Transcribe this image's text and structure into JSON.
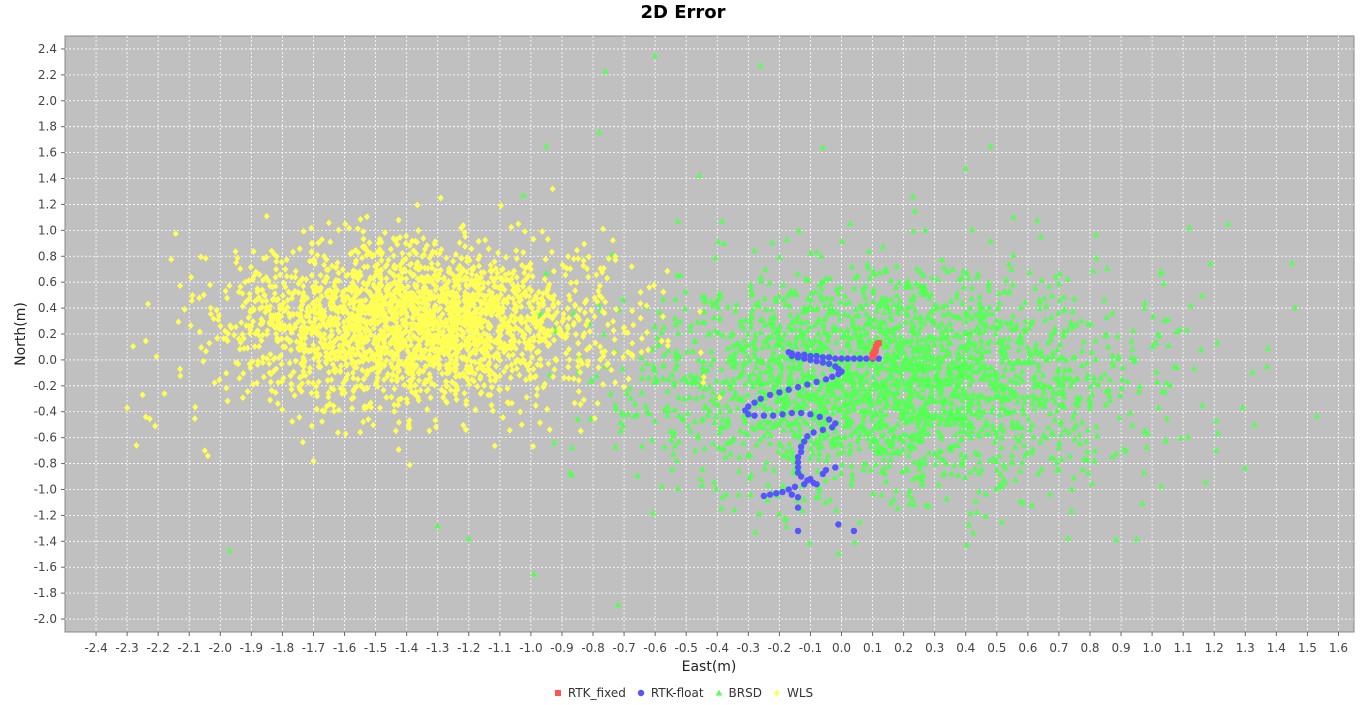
{
  "chart_data": {
    "type": "scatter",
    "title": "2D Error",
    "xlabel": "East(m)",
    "ylabel": "North(m)",
    "xlim": [
      -2.5,
      1.65
    ],
    "ylim": [
      -2.1,
      2.5
    ],
    "xticks": [
      -2.4,
      -2.3,
      -2.2,
      -2.1,
      -2.0,
      -1.9,
      -1.8,
      -1.7,
      -1.6,
      -1.5,
      -1.4,
      -1.3,
      -1.2,
      -1.1,
      -1.0,
      -0.9,
      -0.8,
      -0.7,
      -0.6,
      -0.5,
      -0.4,
      -0.3,
      -0.2,
      -0.1,
      0.0,
      0.1,
      0.2,
      0.3,
      0.4,
      0.5,
      0.6,
      0.7,
      0.8,
      0.9,
      1.0,
      1.1,
      1.2,
      1.3,
      1.4,
      1.5,
      1.6
    ],
    "yticks": [
      2.4,
      2.2,
      2.0,
      1.8,
      1.6,
      1.4,
      1.2,
      1.0,
      0.8,
      0.6,
      0.4,
      0.2,
      0.0,
      -0.2,
      -0.4,
      -0.6,
      -0.8,
      -1.0,
      -1.2,
      -1.4,
      -1.6,
      -1.8,
      -2.0
    ],
    "grid": true,
    "legend_position": "bottom",
    "colors": {
      "background": "#c0c0c0",
      "gridline": "#ffffff",
      "RTK_fixed": "#ff5555",
      "RTK-float": "#5555ff",
      "BRSD": "#55ff55",
      "WLS": "#ffff55"
    },
    "series": [
      {
        "name": "RTK_fixed",
        "marker": "square",
        "points": [
          [
            0.1,
            0.02
          ],
          [
            0.1,
            0.04
          ],
          [
            0.105,
            0.06
          ],
          [
            0.11,
            0.08
          ],
          [
            0.11,
            0.1
          ],
          [
            0.115,
            0.12
          ],
          [
            0.12,
            0.13
          ],
          [
            0.1,
            0.03
          ],
          [
            0.105,
            0.05
          ],
          [
            0.11,
            0.07
          ]
        ]
      },
      {
        "name": "RTK-float",
        "marker": "circle",
        "points": [
          [
            -0.17,
            0.06
          ],
          [
            -0.16,
            0.05
          ],
          [
            -0.14,
            0.04
          ],
          [
            -0.12,
            0.04
          ],
          [
            -0.1,
            0.03
          ],
          [
            -0.08,
            0.03
          ],
          [
            -0.06,
            0.02
          ],
          [
            -0.04,
            0.02
          ],
          [
            -0.02,
            0.01
          ],
          [
            0.0,
            0.01
          ],
          [
            0.02,
            0.01
          ],
          [
            0.04,
            0.01
          ],
          [
            0.06,
            0.01
          ],
          [
            0.08,
            0.01
          ],
          [
            0.1,
            0.01
          ],
          [
            0.12,
            0.01
          ],
          [
            -0.16,
            0.03
          ],
          [
            -0.14,
            0.02
          ],
          [
            -0.12,
            0.01
          ],
          [
            -0.1,
            0.0
          ],
          [
            -0.08,
            -0.01
          ],
          [
            -0.06,
            -0.02
          ],
          [
            -0.04,
            -0.03
          ],
          [
            -0.02,
            -0.05
          ],
          [
            -0.01,
            -0.07
          ],
          [
            0.0,
            -0.09
          ],
          [
            -0.01,
            -0.11
          ],
          [
            -0.03,
            -0.13
          ],
          [
            -0.05,
            -0.15
          ],
          [
            -0.08,
            -0.17
          ],
          [
            -0.11,
            -0.19
          ],
          [
            -0.14,
            -0.21
          ],
          [
            -0.17,
            -0.23
          ],
          [
            -0.2,
            -0.25
          ],
          [
            -0.23,
            -0.27
          ],
          [
            -0.26,
            -0.3
          ],
          [
            -0.28,
            -0.33
          ],
          [
            -0.3,
            -0.36
          ],
          [
            -0.31,
            -0.39
          ],
          [
            -0.3,
            -0.42
          ],
          [
            -0.28,
            -0.43
          ],
          [
            -0.25,
            -0.43
          ],
          [
            -0.22,
            -0.43
          ],
          [
            -0.19,
            -0.42
          ],
          [
            -0.16,
            -0.41
          ],
          [
            -0.13,
            -0.41
          ],
          [
            -0.1,
            -0.42
          ],
          [
            -0.07,
            -0.44
          ],
          [
            -0.04,
            -0.46
          ],
          [
            -0.02,
            -0.49
          ],
          [
            -0.03,
            -0.52
          ],
          [
            -0.06,
            -0.54
          ],
          [
            -0.09,
            -0.56
          ],
          [
            -0.11,
            -0.59
          ],
          [
            -0.12,
            -0.63
          ],
          [
            -0.13,
            -0.67
          ],
          [
            -0.13,
            -0.71
          ],
          [
            -0.14,
            -0.75
          ],
          [
            -0.14,
            -0.79
          ],
          [
            -0.14,
            -0.83
          ],
          [
            -0.14,
            -0.87
          ],
          [
            -0.13,
            -0.9
          ],
          [
            -0.11,
            -0.93
          ],
          [
            -0.09,
            -0.95
          ],
          [
            -0.06,
            -0.88
          ],
          [
            -0.05,
            -0.85
          ],
          [
            -0.02,
            -0.83
          ],
          [
            -0.12,
            -0.96
          ],
          [
            -0.15,
            -0.98
          ],
          [
            -0.17,
            -1.0
          ],
          [
            -0.19,
            -1.02
          ],
          [
            -0.16,
            -1.04
          ],
          [
            -0.14,
            -1.06
          ],
          [
            -0.21,
            -1.03
          ],
          [
            -0.23,
            -1.04
          ],
          [
            -0.25,
            -1.05
          ],
          [
            -0.14,
            -1.14
          ],
          [
            -0.14,
            -1.32
          ],
          [
            -0.01,
            -1.27
          ],
          [
            0.04,
            -1.32
          ],
          [
            -0.1,
            -0.92
          ],
          [
            -0.08,
            -0.96
          ]
        ]
      },
      {
        "name": "BRSD",
        "marker": "triangle",
        "cloud": {
          "center": [
            0.15,
            -0.15
          ],
          "sd": [
            0.38,
            0.42
          ],
          "count": 2600,
          "seed": 11
        },
        "points": [
          [
            -0.6,
            2.35
          ],
          [
            -0.76,
            2.23
          ],
          [
            -0.26,
            2.27
          ],
          [
            -0.78,
            1.76
          ],
          [
            -0.95,
            1.65
          ],
          [
            -0.06,
            1.64
          ],
          [
            0.48,
            1.65
          ],
          [
            0.4,
            1.48
          ],
          [
            1.12,
            1.02
          ],
          [
            1.45,
            0.75
          ],
          [
            1.37,
            -0.05
          ],
          [
            1.33,
            -0.5
          ],
          [
            0.95,
            -1.38
          ],
          [
            -0.72,
            -1.89
          ],
          [
            -1.97,
            -1.47
          ],
          [
            -0.99,
            -1.65
          ],
          [
            -1.2,
            -1.38
          ],
          [
            -1.3,
            -1.28
          ],
          [
            -1.3,
            0.14
          ],
          [
            -0.98,
            0.35
          ],
          [
            -0.97,
            0.36
          ],
          [
            -0.95,
            0.67
          ],
          [
            0.63,
            1.08
          ]
        ]
      },
      {
        "name": "WLS",
        "marker": "diamond",
        "cloud": {
          "center": [
            -1.38,
            0.28
          ],
          "sd": [
            0.3,
            0.3
          ],
          "count": 2600,
          "seed": 7
        },
        "points": [
          [
            -2.3,
            -0.37
          ],
          [
            -2.25,
            -0.27
          ],
          [
            -2.24,
            -0.44
          ],
          [
            -2.27,
            -0.66
          ],
          [
            -2.21,
            -0.51
          ],
          [
            -2.18,
            -0.26
          ],
          [
            -2.05,
            -0.7
          ],
          [
            -2.04,
            -0.74
          ],
          [
            -1.7,
            -0.78
          ],
          [
            -1.39,
            -0.81
          ],
          [
            -1.29,
            1.25
          ],
          [
            -0.93,
            1.32
          ]
        ]
      }
    ]
  }
}
